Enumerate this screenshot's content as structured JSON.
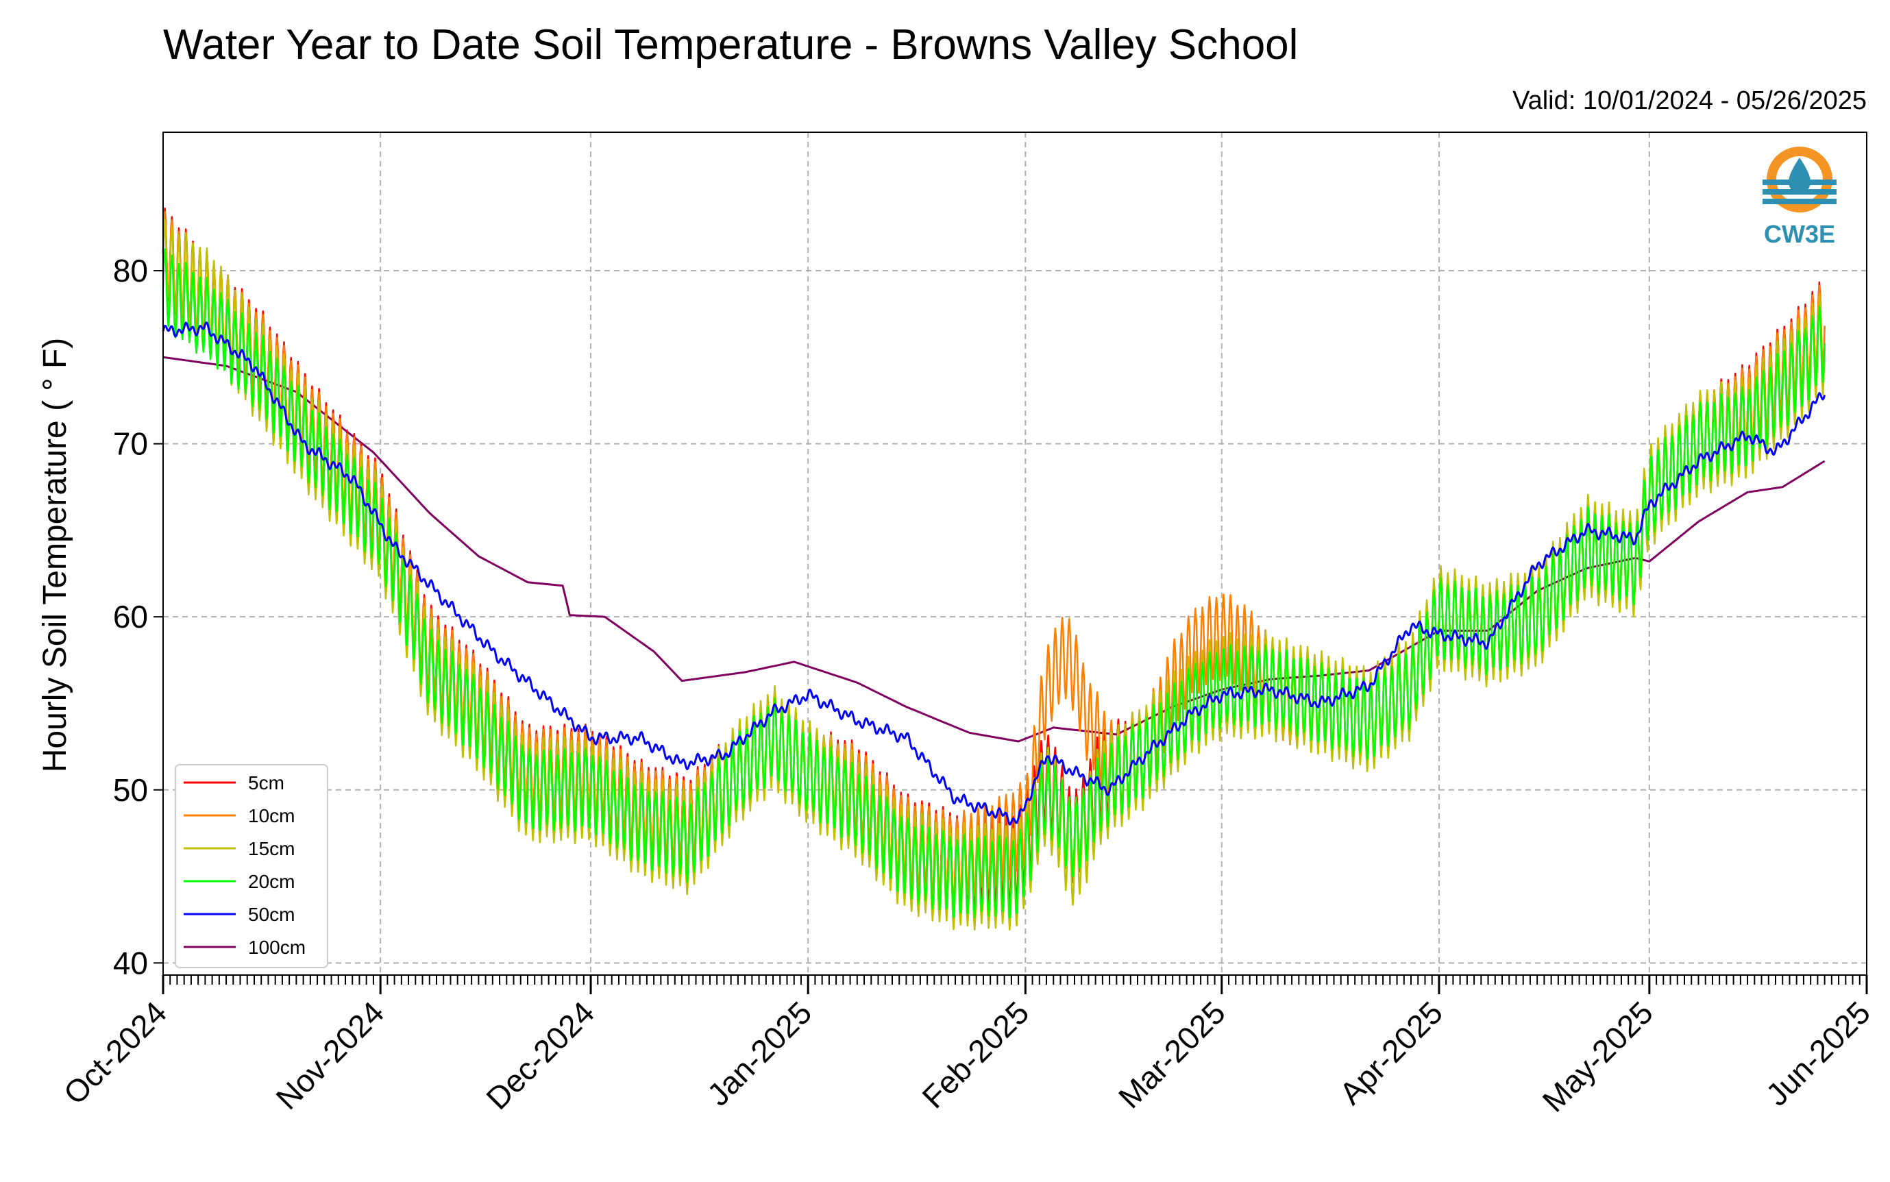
{
  "title": "Water Year to Date Soil Temperature - Browns Valley School",
  "valid": "Valid: 10/01/2024 - 05/26/2025",
  "logo_text": "CW3E",
  "chart_data": {
    "type": "line",
    "title": "Water Year to Date Soil Temperature - Browns Valley School",
    "xlabel": "",
    "ylabel": "Hourly Soil Temperature ( ° F)",
    "xlim": [
      "2024-10-01",
      "2025-06-01"
    ],
    "ylim": [
      39.3,
      88
    ],
    "x_ticks": [
      "Oct-2024",
      "Nov-2024",
      "Dec-2024",
      "Jan-2025",
      "Feb-2025",
      "Mar-2025",
      "Apr-2025",
      "May-2025",
      "Jun-2025"
    ],
    "y_ticks": [
      40,
      50,
      60,
      70,
      80
    ],
    "grid": true,
    "legend_position": "lower-left",
    "series": [
      {
        "name": "5cm",
        "color": "#ff0000",
        "x": [
          "2024-10-01",
          "2024-10-08",
          "2024-10-15",
          "2024-10-22",
          "2024-11-01",
          "2024-11-08",
          "2024-11-15",
          "2024-11-22",
          "2024-12-01",
          "2024-12-08",
          "2024-12-15",
          "2024-12-22",
          "2024-12-27",
          "2025-01-01",
          "2025-01-08",
          "2025-01-15",
          "2025-01-22",
          "2025-01-31",
          "2025-02-04",
          "2025-02-08",
          "2025-02-12",
          "2025-02-18",
          "2025-02-25",
          "2025-03-01",
          "2025-03-08",
          "2025-03-15",
          "2025-03-22",
          "2025-03-28",
          "2025-04-01",
          "2025-04-08",
          "2025-04-15",
          "2025-04-22",
          "2025-04-29",
          "2025-05-01",
          "2025-05-08",
          "2025-05-15",
          "2025-05-22",
          "2025-05-26"
        ],
        "y": [
          81,
          78,
          75,
          71,
          66,
          58,
          55,
          51,
          51,
          49,
          48,
          51,
          53,
          51,
          50,
          47,
          46,
          46,
          51,
          47,
          51,
          52,
          55,
          56,
          56,
          55,
          54,
          56,
          60,
          59,
          60,
          64,
          63,
          67,
          70,
          72,
          75,
          77
        ]
      },
      {
        "name": "10cm",
        "color": "#ff8000",
        "x": [
          "2024-10-01",
          "2024-10-08",
          "2024-10-15",
          "2024-10-22",
          "2024-11-01",
          "2024-11-08",
          "2024-11-15",
          "2024-11-22",
          "2024-12-01",
          "2024-12-08",
          "2024-12-15",
          "2024-12-22",
          "2024-12-27",
          "2025-01-01",
          "2025-01-08",
          "2025-01-15",
          "2025-01-22",
          "2025-01-28",
          "2025-02-01",
          "2025-02-04",
          "2025-02-07",
          "2025-02-10",
          "2025-02-14",
          "2025-02-18",
          "2025-02-22",
          "2025-02-25",
          "2025-03-01",
          "2025-03-05",
          "2025-03-10",
          "2025-03-15",
          "2025-03-22",
          "2025-03-28",
          "2025-04-01",
          "2025-04-08",
          "2025-04-15",
          "2025-04-22",
          "2025-04-29",
          "2025-05-01",
          "2025-05-08",
          "2025-05-15",
          "2025-05-22",
          "2025-05-26"
        ],
        "y": [
          81,
          78,
          75,
          71,
          66,
          58,
          55,
          51,
          51,
          49,
          48,
          51,
          53,
          51,
          50,
          47,
          46,
          47,
          48,
          56,
          58,
          54,
          51,
          52,
          56,
          58,
          59,
          58,
          55,
          55,
          54,
          56,
          60,
          59,
          60,
          64,
          63,
          67,
          70,
          72,
          75,
          77
        ]
      },
      {
        "name": "15cm",
        "color": "#c0c000",
        "x": [
          "2024-10-01",
          "2024-10-08",
          "2024-10-15",
          "2024-10-22",
          "2024-11-01",
          "2024-11-08",
          "2024-11-15",
          "2024-11-22",
          "2024-12-01",
          "2024-12-08",
          "2024-12-15",
          "2024-12-22",
          "2024-12-27",
          "2025-01-01",
          "2025-01-08",
          "2025-01-15",
          "2025-01-22",
          "2025-01-31",
          "2025-02-04",
          "2025-02-08",
          "2025-02-12",
          "2025-02-18",
          "2025-02-25",
          "2025-03-01",
          "2025-03-08",
          "2025-03-15",
          "2025-03-22",
          "2025-03-28",
          "2025-04-01",
          "2025-04-08",
          "2025-04-15",
          "2025-04-22",
          "2025-04-29",
          "2025-05-01",
          "2025-05-08",
          "2025-05-15",
          "2025-05-22",
          "2025-05-26"
        ],
        "y": [
          80,
          78,
          74,
          70,
          65,
          57,
          54,
          50,
          50,
          48,
          47,
          51,
          53,
          51,
          49,
          46,
          45,
          45,
          50,
          46,
          50,
          52,
          55,
          56,
          56,
          55,
          54,
          56,
          60,
          59,
          60,
          64,
          63,
          67,
          70,
          71,
          74,
          76
        ]
      },
      {
        "name": "20cm",
        "color": "#00ff00",
        "x": [
          "2024-10-01",
          "2024-10-08",
          "2024-10-15",
          "2024-10-22",
          "2024-11-01",
          "2024-11-08",
          "2024-11-15",
          "2024-11-22",
          "2024-12-01",
          "2024-12-08",
          "2024-12-15",
          "2024-12-22",
          "2024-12-27",
          "2025-01-01",
          "2025-01-08",
          "2025-01-15",
          "2025-01-22",
          "2025-01-31",
          "2025-02-04",
          "2025-02-08",
          "2025-02-12",
          "2025-02-18",
          "2025-02-25",
          "2025-03-01",
          "2025-03-08",
          "2025-03-15",
          "2025-03-22",
          "2025-03-28",
          "2025-04-01",
          "2025-04-08",
          "2025-04-15",
          "2025-04-22",
          "2025-04-29",
          "2025-05-01",
          "2025-05-08",
          "2025-05-15",
          "2025-05-22",
          "2025-05-26"
        ],
        "y": [
          79,
          77,
          74,
          70,
          65,
          57,
          54,
          50,
          50,
          48,
          47,
          51,
          53,
          51,
          49,
          46,
          45,
          45,
          50,
          47,
          50,
          52,
          55,
          56,
          56,
          55,
          54,
          56,
          60,
          59,
          60,
          64,
          63,
          67,
          70,
          71,
          74,
          76
        ]
      },
      {
        "name": "50cm",
        "color": "#0000ff",
        "x": [
          "2024-10-01",
          "2024-10-07",
          "2024-10-14",
          "2024-10-21",
          "2024-10-28",
          "2024-11-03",
          "2024-11-10",
          "2024-11-17",
          "2024-11-24",
          "2024-12-01",
          "2024-12-08",
          "2024-12-14",
          "2024-12-20",
          "2024-12-27",
          "2025-01-01",
          "2025-01-08",
          "2025-01-15",
          "2025-01-22",
          "2025-01-31",
          "2025-02-04",
          "2025-02-08",
          "2025-02-13",
          "2025-02-18",
          "2025-02-25",
          "2025-03-01",
          "2025-03-08",
          "2025-03-15",
          "2025-03-22",
          "2025-03-28",
          "2025-04-01",
          "2025-04-08",
          "2025-04-15",
          "2025-04-22",
          "2025-04-29",
          "2025-05-01",
          "2025-05-08",
          "2025-05-15",
          "2025-05-19",
          "2025-05-26"
        ],
        "y": [
          76.5,
          76.7,
          74.5,
          70,
          68,
          64,
          61,
          58,
          55.5,
          53,
          53,
          51.5,
          52,
          54.5,
          55.5,
          54,
          53,
          49.5,
          48.2,
          52,
          51,
          50,
          52,
          54.5,
          55.5,
          55.8,
          55,
          56,
          59.5,
          59,
          58.5,
          63,
          65,
          64.5,
          66.5,
          69,
          70.5,
          69.5,
          73
        ]
      },
      {
        "name": "100cm",
        "color": "#800060",
        "x": [
          "2024-10-01",
          "2024-10-10",
          "2024-10-20",
          "2024-10-31",
          "2024-11-08",
          "2024-11-15",
          "2024-11-22",
          "2024-11-27",
          "2024-11-28",
          "2024-12-03",
          "2024-12-10",
          "2024-12-14",
          "2024-12-23",
          "2024-12-30",
          "2025-01-08",
          "2025-01-15",
          "2025-01-24",
          "2025-01-31",
          "2025-02-05",
          "2025-02-14",
          "2025-02-22",
          "2025-03-01",
          "2025-03-08",
          "2025-03-15",
          "2025-03-22",
          "2025-04-01",
          "2025-04-08",
          "2025-04-15",
          "2025-04-22",
          "2025-04-29",
          "2025-05-01",
          "2025-05-08",
          "2025-05-15",
          "2025-05-20",
          "2025-05-26"
        ],
        "y": [
          75,
          74.5,
          73,
          69.5,
          66,
          63.5,
          62,
          61.8,
          60.1,
          60,
          58,
          56.3,
          56.8,
          57.4,
          56.2,
          54.8,
          53.3,
          52.8,
          53.6,
          53.2,
          54.8,
          55.8,
          56.4,
          56.6,
          56.9,
          59.2,
          59.2,
          61.5,
          62.8,
          63.4,
          63.2,
          65.5,
          67.2,
          67.5,
          69
        ]
      }
    ]
  }
}
